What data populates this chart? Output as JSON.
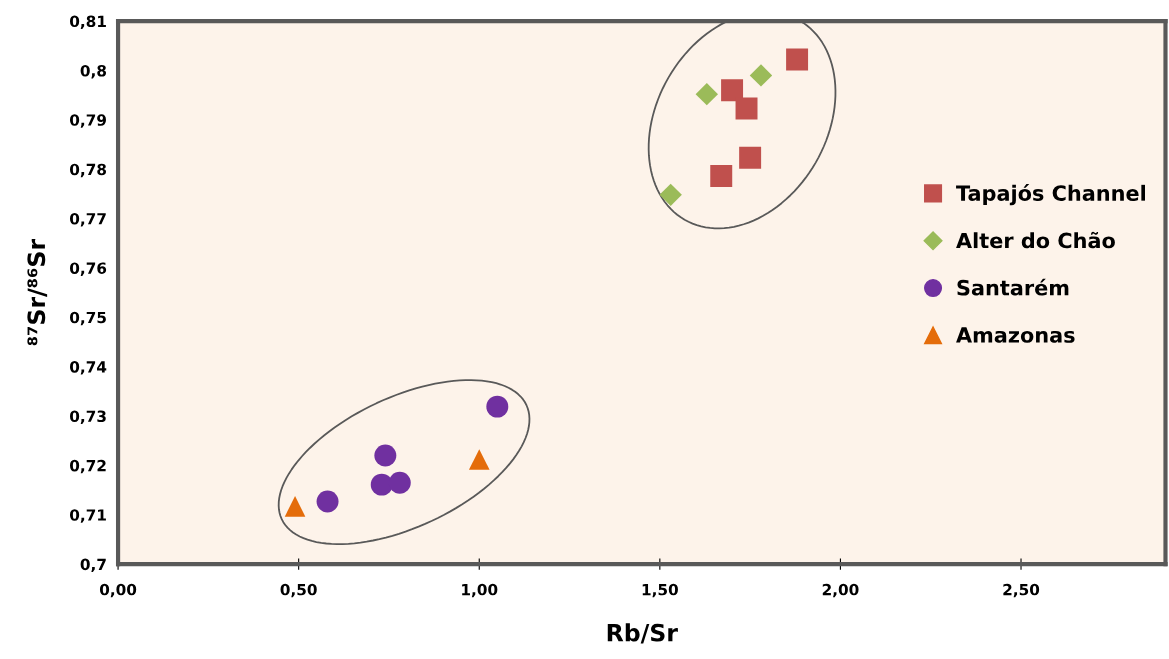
{
  "chart_data": {
    "type": "scatter",
    "xlabel": "Rb/Sr",
    "ylabel": "⁸⁷Sr/⁸⁶Sr",
    "xlim": [
      0,
      2.9
    ],
    "ylim": [
      0.7,
      0.81
    ],
    "xticks": [
      {
        "value": 0,
        "label": "0,00"
      },
      {
        "value": 0.5,
        "label": "0,50"
      },
      {
        "value": 1.0,
        "label": "1,00"
      },
      {
        "value": 1.5,
        "label": "1,50"
      },
      {
        "value": 2.0,
        "label": "2,00"
      },
      {
        "value": 2.5,
        "label": "2,50"
      }
    ],
    "yticks": [
      {
        "value": 0.7,
        "label": "0,7"
      },
      {
        "value": 0.71,
        "label": "0,71"
      },
      {
        "value": 0.72,
        "label": "0,72"
      },
      {
        "value": 0.73,
        "label": "0,73"
      },
      {
        "value": 0.74,
        "label": "0,74"
      },
      {
        "value": 0.75,
        "label": "0,75"
      },
      {
        "value": 0.76,
        "label": "0,76"
      },
      {
        "value": 0.77,
        "label": "0,77"
      },
      {
        "value": 0.78,
        "label": "0,78"
      },
      {
        "value": 0.79,
        "label": "0,79"
      },
      {
        "value": 0.8,
        "label": "0,8"
      },
      {
        "value": 0.81,
        "label": "0,81"
      }
    ],
    "grid": false,
    "legend": "right",
    "series": [
      {
        "name": "Tapajós Channel",
        "color": "#c0504d",
        "marker": "square",
        "x": [
          1.88,
          1.7,
          1.74,
          1.75,
          1.67
        ],
        "values": [
          0.8022,
          0.796,
          0.7923,
          0.7823,
          0.7786
        ]
      },
      {
        "name": "Alter do Chão",
        "color": "#9bbb59",
        "marker": "diamond",
        "x": [
          1.63,
          1.78,
          1.53
        ],
        "values": [
          0.7952,
          0.799,
          0.7748
        ]
      },
      {
        "name": "Santarém",
        "color": "#7030a0",
        "marker": "circle",
        "x": [
          1.05,
          0.74,
          0.73,
          0.78,
          0.58
        ],
        "values": [
          0.7319,
          0.722,
          0.7161,
          0.7165,
          0.7127
        ]
      },
      {
        "name": "Amazonas",
        "color": "#e46c0a",
        "marker": "triangle",
        "x": [
          1.0,
          0.49
        ],
        "values": [
          0.7212,
          0.7117
        ]
      }
    ]
  }
}
